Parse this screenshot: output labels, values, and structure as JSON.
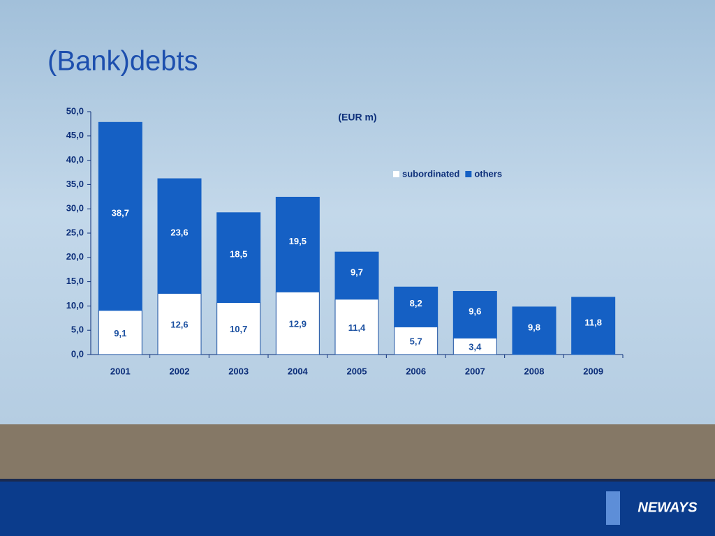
{
  "title": "(Bank)debts",
  "logo": "NEWAYS",
  "chart_data": {
    "type": "stacked-bar",
    "annotation": "(EUR  m)",
    "categories": [
      "2001",
      "2002",
      "2003",
      "2004",
      "2005",
      "2006",
      "2007",
      "2008",
      "2009"
    ],
    "series": [
      {
        "name": "subordinated",
        "color": "#ffffff",
        "values": [
          9.1,
          12.6,
          10.7,
          12.9,
          11.4,
          5.7,
          3.4,
          null,
          null
        ],
        "value_labels": [
          "9,1",
          "12,6",
          "10,7",
          "12,9",
          "11,4",
          "5,7",
          "3,4",
          null,
          null
        ]
      },
      {
        "name": "others",
        "color": "#1560c4",
        "values": [
          38.7,
          23.6,
          18.5,
          19.5,
          9.7,
          8.2,
          9.6,
          9.8,
          11.8
        ],
        "value_labels": [
          "38,7",
          "23,6",
          "18,5",
          "19,5",
          "9,7",
          "8,2",
          "9,6",
          "9,8",
          "11,8"
        ]
      }
    ],
    "ylim": [
      0,
      50
    ],
    "yticks": [
      {
        "value": 0,
        "label": "0,0"
      },
      {
        "value": 5,
        "label": "5,0"
      },
      {
        "value": 10,
        "label": "10,0"
      },
      {
        "value": 15,
        "label": "15,0"
      },
      {
        "value": 20,
        "label": "20,0"
      },
      {
        "value": 25,
        "label": "25,0"
      },
      {
        "value": 30,
        "label": "30,0"
      },
      {
        "value": 35,
        "label": "35,0"
      },
      {
        "value": 40,
        "label": "40,0"
      },
      {
        "value": 45,
        "label": "45,0"
      },
      {
        "value": 50,
        "label": "50,0"
      }
    ],
    "legend": "top-right"
  }
}
